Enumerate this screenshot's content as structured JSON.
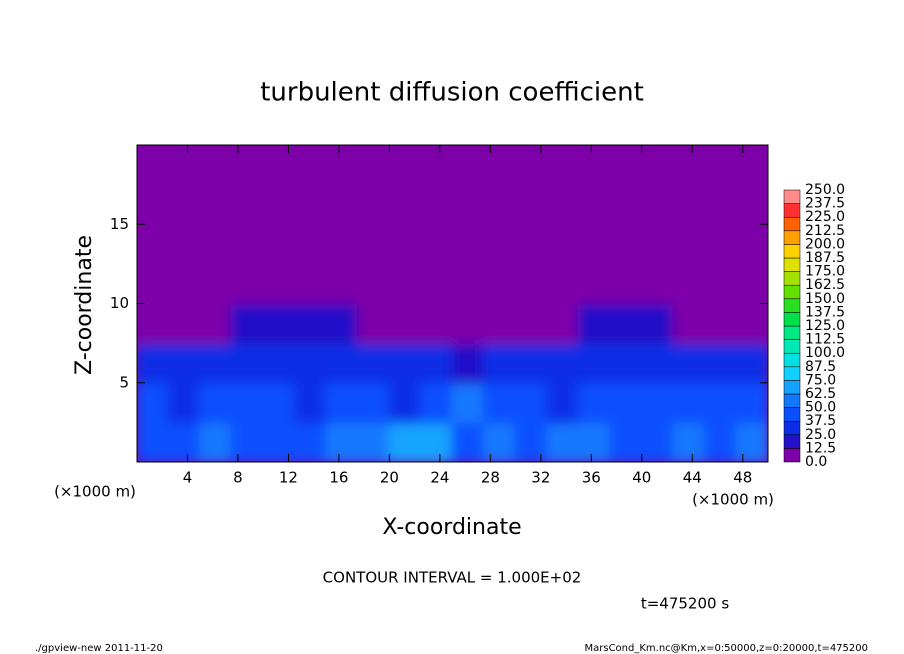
{
  "chart_data": {
    "type": "heatmap",
    "title": "turbulent diffusion coefficient",
    "xlabel": "X-coordinate",
    "ylabel": "Z-coordinate",
    "x_unit": "(×1000 m)",
    "xlim": [
      0,
      50
    ],
    "ylim": [
      0,
      20
    ],
    "xticks": [
      4,
      8,
      12,
      16,
      20,
      24,
      28,
      32,
      36,
      40,
      44,
      48
    ],
    "yticks": [
      5,
      10,
      15
    ],
    "x": [
      1.25,
      3.75,
      6.25,
      8.75,
      11.25,
      13.75,
      16.25,
      18.75,
      21.25,
      23.75,
      26.25,
      28.75,
      31.25,
      33.75,
      36.25,
      38.75,
      41.25,
      43.75,
      46.25,
      48.75
    ],
    "y": [
      1.25,
      3.75,
      6.25,
      8.75,
      11.25,
      13.75,
      16.25,
      18.75
    ],
    "values": [
      [
        45,
        40,
        50,
        45,
        40,
        45,
        55,
        60,
        70,
        65,
        45,
        50,
        45,
        50,
        55,
        45,
        40,
        55,
        45,
        50
      ],
      [
        40,
        35,
        40,
        45,
        40,
        35,
        45,
        40,
        35,
        40,
        50,
        45,
        40,
        35,
        40,
        45,
        40,
        45,
        40,
        45
      ],
      [
        25,
        30,
        35,
        35,
        30,
        30,
        35,
        30,
        30,
        25,
        20,
        25,
        30,
        35,
        35,
        35,
        30,
        30,
        25,
        30
      ],
      [
        0,
        0,
        0,
        15,
        20,
        20,
        15,
        0,
        0,
        0,
        0,
        0,
        0,
        0,
        15,
        20,
        20,
        10,
        0,
        0
      ],
      [
        0,
        0,
        0,
        0,
        0,
        0,
        0,
        0,
        0,
        0,
        0,
        0,
        0,
        0,
        0,
        0,
        0,
        0,
        0,
        0
      ],
      [
        0,
        0,
        0,
        0,
        0,
        0,
        0,
        0,
        0,
        0,
        0,
        0,
        0,
        0,
        0,
        0,
        0,
        0,
        0,
        0
      ],
      [
        0,
        0,
        0,
        0,
        0,
        0,
        0,
        0,
        0,
        0,
        0,
        0,
        0,
        0,
        0,
        0,
        0,
        0,
        0,
        0
      ],
      [
        0,
        0,
        0,
        0,
        0,
        0,
        0,
        0,
        0,
        0,
        0,
        0,
        0,
        0,
        0,
        0,
        0,
        0,
        0,
        0
      ]
    ],
    "colorbar": {
      "levels": [
        {
          "value": 0,
          "label": "0.0"
        },
        {
          "value": 12.5,
          "label": "12.5"
        },
        {
          "value": 25,
          "label": "25.0"
        },
        {
          "value": 37.5,
          "label": "37.5"
        },
        {
          "value": 50,
          "label": "50.0"
        },
        {
          "value": 62.5,
          "label": "62.5"
        },
        {
          "value": 75,
          "label": "75.0"
        },
        {
          "value": 87.5,
          "label": "87.5"
        },
        {
          "value": 100,
          "label": "100.0"
        },
        {
          "value": 112.5,
          "label": "112.5"
        },
        {
          "value": 125,
          "label": "125.0"
        },
        {
          "value": 137.5,
          "label": "137.5"
        },
        {
          "value": 150,
          "label": "150.0"
        },
        {
          "value": 162.5,
          "label": "162.5"
        },
        {
          "value": 175,
          "label": "175.0"
        },
        {
          "value": 187.5,
          "label": "187.5"
        },
        {
          "value": 200,
          "label": "200.0"
        },
        {
          "value": 212.5,
          "label": "212.5"
        },
        {
          "value": 225,
          "label": "225.0"
        },
        {
          "value": 237.5,
          "label": "237.5"
        },
        {
          "value": 250,
          "label": "250.0"
        }
      ],
      "colors": [
        "#7d00a8",
        "#2410c8",
        "#0a2ee6",
        "#0a50ff",
        "#1478ff",
        "#14a4ff",
        "#10d0ff",
        "#00e0e0",
        "#00e8b4",
        "#00e884",
        "#00e048",
        "#28e020",
        "#64e000",
        "#a4e000",
        "#e0e000",
        "#ffd000",
        "#ffa000",
        "#ff6000",
        "#ff3030",
        "#ff8a8a"
      ]
    },
    "annotations": [
      "CONTOUR INTERVAL = 1.000E+02",
      "t=475200 s"
    ],
    "footer_left": "./gpview-new  2011-11-20",
    "footer_right": "MarsCond_Km.nc@Km,x=0:50000,z=0:20000,t=475200"
  }
}
